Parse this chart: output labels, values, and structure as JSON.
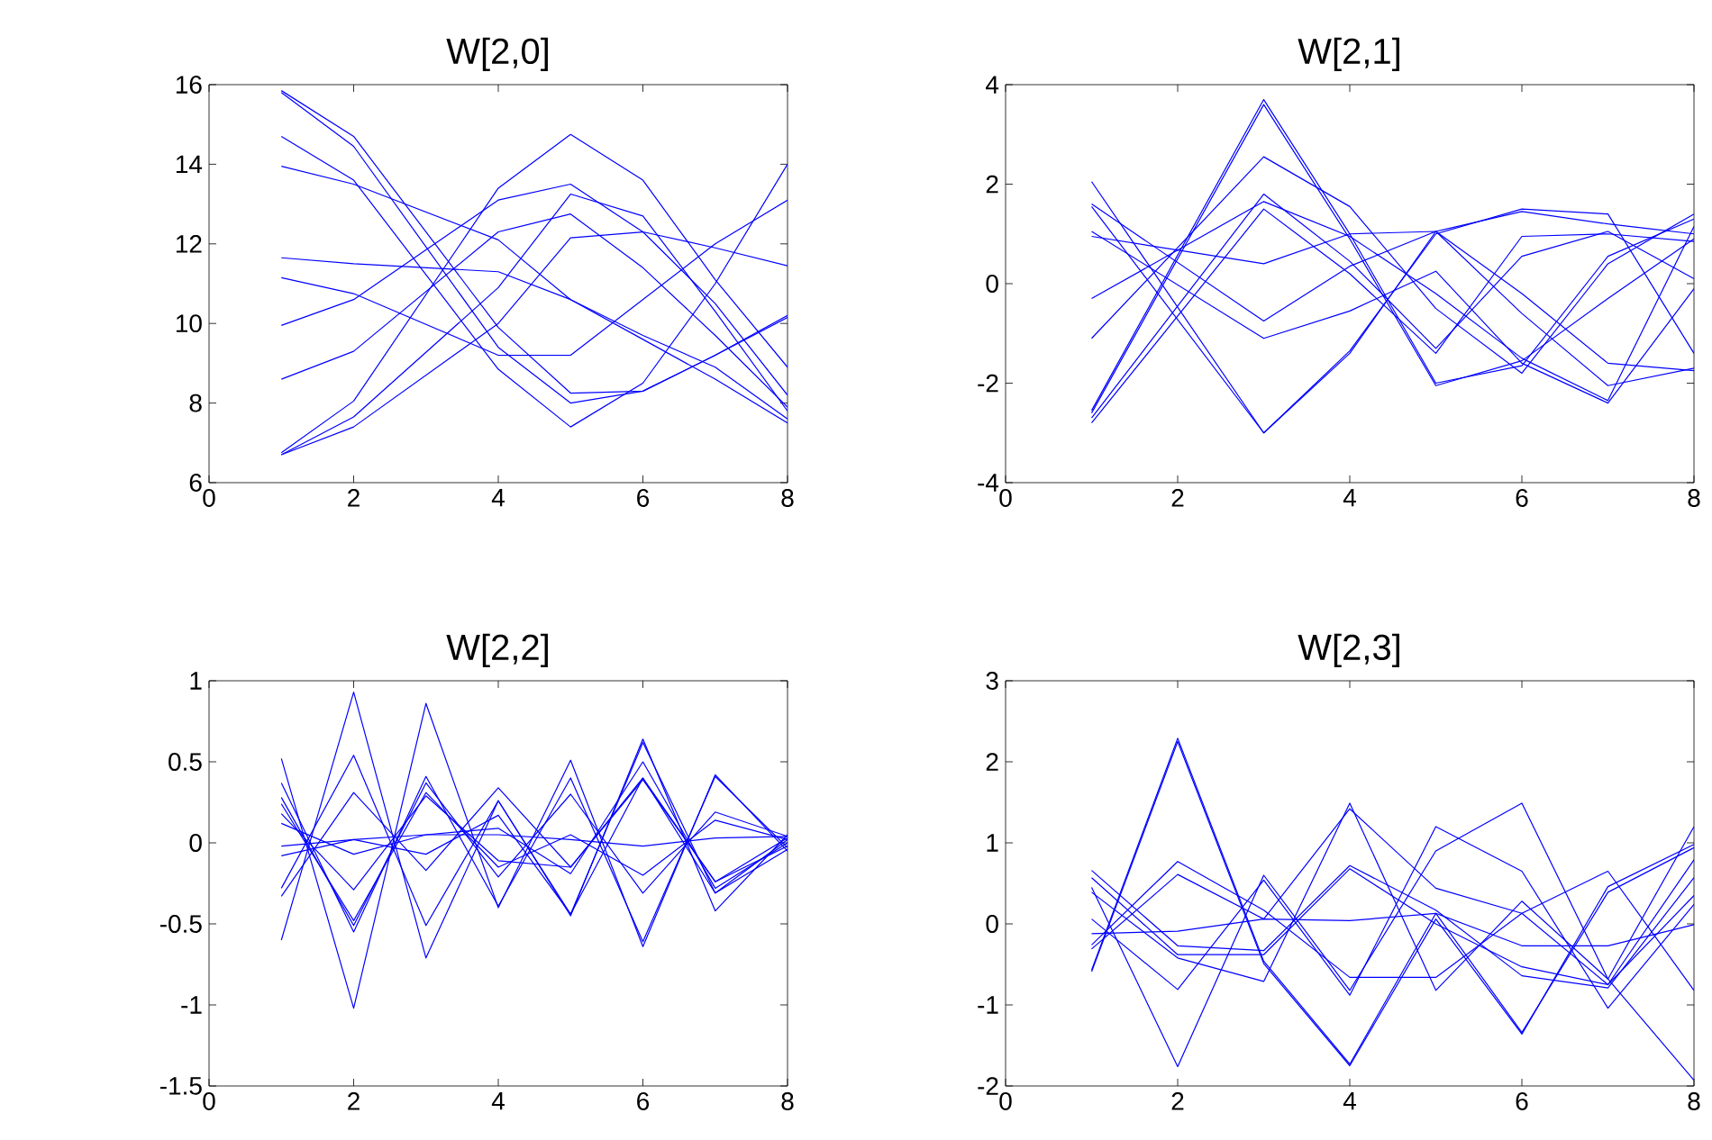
{
  "chart_data": [
    {
      "type": "line",
      "title": "W[2,0]",
      "x": [
        1,
        2,
        4,
        5,
        6,
        7,
        8
      ],
      "xlim": [
        0,
        8
      ],
      "xticks": [
        0,
        2,
        4,
        6,
        8
      ],
      "ylim": [
        6,
        16
      ],
      "yticks": [
        6,
        8,
        10,
        12,
        14,
        16
      ],
      "series": [
        {
          "color": "#0000ff",
          "values": [
            15.85,
            14.7,
            9.9,
            8.25,
            8.3,
            9.2,
            10.2
          ]
        },
        {
          "color": "#0000ff",
          "values": [
            15.8,
            14.45,
            9.4,
            8.0,
            8.3,
            9.2,
            10.15
          ]
        },
        {
          "color": "#0000ff",
          "values": [
            14.7,
            13.6,
            8.85,
            7.4,
            8.5,
            11.0,
            14.0
          ]
        },
        {
          "color": "#0000ff",
          "values": [
            13.95,
            13.5,
            12.1,
            10.6,
            9.6,
            8.6,
            7.5
          ]
        },
        {
          "color": "#0000ff",
          "values": [
            11.65,
            11.5,
            11.3,
            10.6,
            9.7,
            8.9,
            7.6
          ]
        },
        {
          "color": "#0000ff",
          "values": [
            11.15,
            10.75,
            9.2,
            9.2,
            10.6,
            12.0,
            13.1
          ]
        },
        {
          "color": "#0000ff",
          "values": [
            9.95,
            10.6,
            13.1,
            13.5,
            12.3,
            10.5,
            8.2
          ]
        },
        {
          "color": "#0000ff",
          "values": [
            8.6,
            9.3,
            12.3,
            12.75,
            11.4,
            9.7,
            7.9
          ]
        },
        {
          "color": "#0000ff",
          "values": [
            6.75,
            8.05,
            13.4,
            14.75,
            13.6,
            11.1,
            8.9
          ]
        },
        {
          "color": "#0000ff",
          "values": [
            6.7,
            7.65,
            10.9,
            13.25,
            12.7,
            10.3,
            7.8
          ]
        },
        {
          "color": "#0000ff",
          "values": [
            6.7,
            7.4,
            10.0,
            12.15,
            12.3,
            11.9,
            11.45
          ]
        }
      ]
    },
    {
      "type": "line",
      "title": "W[2,1]",
      "x": [
        1,
        3,
        4,
        5,
        6,
        7,
        8
      ],
      "xlim": [
        0,
        8
      ],
      "xticks": [
        0,
        2,
        4,
        6,
        8
      ],
      "ylim": [
        -4,
        4
      ],
      "yticks": [
        -4,
        -2,
        0,
        2,
        4
      ],
      "series": [
        {
          "color": "#0000ff",
          "values": [
            2.05,
            -3.0,
            -1.35,
            1.0,
            1.5,
            1.4,
            -1.4
          ]
        },
        {
          "color": "#0000ff",
          "values": [
            1.55,
            -3.0,
            -1.4,
            1.05,
            1.45,
            1.2,
            1.0
          ]
        },
        {
          "color": "#0000ff",
          "values": [
            1.6,
            -0.75,
            0.35,
            1.05,
            -0.6,
            -2.05,
            -1.7
          ]
        },
        {
          "color": "#0000ff",
          "values": [
            1.05,
            -1.1,
            -0.55,
            0.25,
            -1.6,
            -2.4,
            -0.1
          ]
        },
        {
          "color": "#0000ff",
          "values": [
            0.95,
            0.4,
            1.0,
            1.05,
            -0.2,
            -1.6,
            -1.75
          ]
        },
        {
          "color": "#0000ff",
          "values": [
            -0.3,
            1.65,
            0.95,
            -0.2,
            -1.5,
            -2.35,
            1.15
          ]
        },
        {
          "color": "#0000ff",
          "values": [
            -1.1,
            2.55,
            1.55,
            -0.5,
            -1.8,
            0.4,
            1.4
          ]
        },
        {
          "color": "#0000ff",
          "values": [
            -2.55,
            3.7,
            1.0,
            -2.0,
            -1.65,
            0.55,
            1.3
          ]
        },
        {
          "color": "#0000ff",
          "values": [
            -2.6,
            3.6,
            0.9,
            -2.05,
            -1.55,
            -0.3,
            0.9
          ]
        },
        {
          "color": "#0000ff",
          "values": [
            -2.7,
            1.8,
            0.45,
            -1.3,
            0.55,
            1.05,
            0.1
          ]
        },
        {
          "color": "#0000ff",
          "values": [
            -2.8,
            1.5,
            0.2,
            -1.4,
            0.95,
            1.0,
            0.85
          ]
        }
      ]
    },
    {
      "type": "line",
      "title": "W[2,2]",
      "x": [
        1,
        2,
        3,
        4,
        5,
        6,
        7,
        8
      ],
      "xlim": [
        0,
        8
      ],
      "xticks": [
        0,
        2,
        4,
        6,
        8
      ],
      "ylim": [
        -1.5,
        1
      ],
      "yticks": [
        -1.5,
        -1,
        -0.5,
        0,
        0.5,
        1
      ],
      "series": [
        {
          "color": "#0000ff",
          "values": [
            0.52,
            -1.02,
            0.86,
            -0.4,
            0.51,
            -0.64,
            0.42,
            -0.05
          ]
        },
        {
          "color": "#0000ff",
          "values": [
            0.37,
            -0.55,
            0.41,
            -0.39,
            0.4,
            -0.61,
            0.41,
            -0.03
          ]
        },
        {
          "color": "#0000ff",
          "values": [
            0.28,
            -0.51,
            0.37,
            -0.21,
            0.3,
            -0.31,
            0.19,
            0.04
          ]
        },
        {
          "color": "#0000ff",
          "values": [
            0.24,
            -0.48,
            0.31,
            -0.15,
            0.05,
            -0.2,
            0.14,
            0.02
          ]
        },
        {
          "color": "#0000ff",
          "values": [
            0.18,
            -0.29,
            0.29,
            -0.11,
            -0.15,
            0.39,
            -0.24,
            0.03
          ]
        },
        {
          "color": "#0000ff",
          "values": [
            0.12,
            -0.07,
            0.05,
            0.09,
            -0.19,
            0.5,
            -0.28,
            0.0
          ]
        },
        {
          "color": "#0000ff",
          "values": [
            -0.02,
            0.02,
            0.05,
            0.05,
            0.02,
            -0.02,
            0.03,
            0.04
          ]
        },
        {
          "color": "#0000ff",
          "values": [
            -0.08,
            0.02,
            -0.07,
            0.17,
            -0.44,
            0.62,
            -0.31,
            0.02
          ]
        },
        {
          "color": "#0000ff",
          "values": [
            -0.28,
            0.54,
            -0.51,
            0.26,
            -0.45,
            0.64,
            -0.42,
            0.05
          ]
        },
        {
          "color": "#0000ff",
          "values": [
            -0.33,
            0.31,
            -0.17,
            0.34,
            -0.15,
            0.4,
            -0.24,
            -0.02
          ]
        },
        {
          "color": "#0000ff",
          "values": [
            -0.6,
            0.93,
            -0.71,
            0.26,
            -0.44,
            0.4,
            -0.31,
            -0.04
          ]
        }
      ]
    },
    {
      "type": "line",
      "title": "W[2,3]",
      "x": [
        1,
        2,
        3,
        4,
        5,
        6,
        7,
        8
      ],
      "xlim": [
        0,
        8
      ],
      "xticks": [
        0,
        2,
        4,
        6,
        8
      ],
      "ylim": [
        -2,
        3
      ],
      "yticks": [
        -2,
        -1,
        0,
        1,
        2,
        3
      ],
      "series": [
        {
          "color": "#0000ff",
          "values": [
            -0.57,
            2.29,
            -0.46,
            -1.73,
            0.13,
            -1.34,
            0.39,
            0.94
          ]
        },
        {
          "color": "#0000ff",
          "values": [
            -0.59,
            2.25,
            -0.49,
            -1.75,
            0.06,
            -1.36,
            0.46,
            0.98
          ]
        },
        {
          "color": "#0000ff",
          "values": [
            0.66,
            -0.27,
            -0.33,
            0.72,
            0.17,
            -0.64,
            -0.79,
            0.57
          ]
        },
        {
          "color": "#0000ff",
          "values": [
            0.57,
            -0.38,
            -0.38,
            0.68,
            0.0,
            -0.53,
            -0.75,
            0.79
          ]
        },
        {
          "color": "#0000ff",
          "values": [
            0.39,
            -0.42,
            -0.71,
            1.49,
            -0.82,
            0.28,
            -0.68,
            1.2
          ]
        },
        {
          "color": "#0000ff",
          "values": [
            0.06,
            -0.81,
            0.54,
            -0.88,
            1.2,
            0.65,
            -1.04,
            0.24
          ]
        },
        {
          "color": "#0000ff",
          "values": [
            -0.12,
            -0.09,
            0.06,
            0.04,
            0.13,
            -0.27,
            -0.27,
            -0.01
          ]
        },
        {
          "color": "#0000ff",
          "values": [
            -0.26,
            0.77,
            0.17,
            -0.66,
            -0.66,
            0.13,
            0.65,
            -0.82
          ]
        },
        {
          "color": "#0000ff",
          "values": [
            -0.31,
            0.61,
            0.06,
            1.42,
            0.44,
            0.13,
            -0.75,
            0.35
          ]
        },
        {
          "color": "#0000ff",
          "values": [
            0.45,
            -1.76,
            0.6,
            -0.82,
            0.9,
            1.49,
            -0.68,
            -1.93
          ]
        }
      ]
    }
  ]
}
